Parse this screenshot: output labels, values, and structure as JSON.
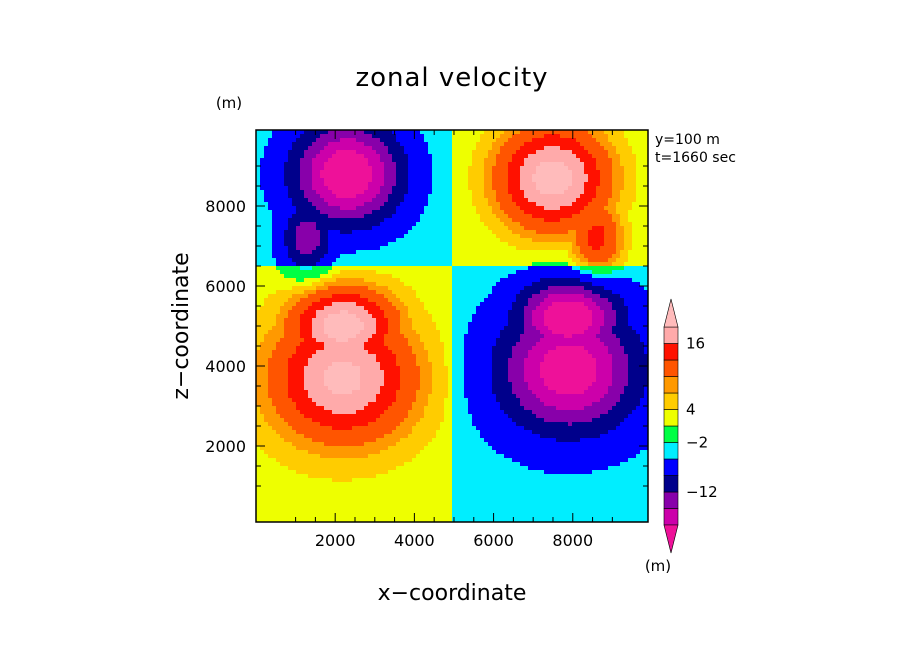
{
  "chart_data": {
    "type": "heatmap",
    "title": "zonal velocity",
    "xlabel": "x−coordinate",
    "ylabel": "z−coordinate",
    "y_unit_label": "(m)",
    "colorbar_unit_label": "(m)",
    "annotations": [
      "y=100 m",
      "t=1660 sec"
    ],
    "xlim": [
      0,
      9900
    ],
    "ylim": [
      100,
      9900
    ],
    "x_ticks": [
      2000,
      4000,
      6000,
      8000
    ],
    "y_ticks": [
      2000,
      4000,
      6000,
      8000
    ],
    "x_tick_labels": [
      "2000",
      "4000",
      "6000",
      "8000"
    ],
    "y_tick_labels": [
      "2000",
      "4000",
      "6000",
      "8000"
    ],
    "grid": false,
    "colorbar": {
      "levels": [
        -20,
        -16,
        -12,
        -8,
        -4,
        -2,
        2,
        4,
        6,
        8,
        12,
        16,
        20
      ],
      "colors": [
        "#cc00aa",
        "#8800aa",
        "#00008b",
        "#0000ff",
        "#00eeff",
        "#00ff44",
        "#eeff00",
        "#ffcc00",
        "#ff9900",
        "#ff5500",
        "#ff1100",
        "#ffaaaa"
      ],
      "extend_low_color": "#ee1199",
      "extend_high_color": "#ffbbbb",
      "labeled_levels": [
        {
          "value": 16,
          "label": "16"
        },
        {
          "value": 4,
          "label": "4"
        },
        {
          "value": -2,
          "label": "−2"
        },
        {
          "value": -12,
          "label": "−12"
        }
      ]
    },
    "structures": {
      "upper_left_jet": {
        "center": [
          2300,
          8800
        ],
        "peak": -22
      },
      "upper_right_jet": {
        "center": [
          7500,
          8700
        ],
        "peak": 20
      },
      "lower_left_lobe": {
        "center": [
          2200,
          5000
        ],
        "peak": 20
      },
      "lower_right_lobe": {
        "center": [
          7900,
          5200
        ],
        "peak": -22
      },
      "dividing_line_x": 5000,
      "shear_interface_z": 6500
    }
  }
}
